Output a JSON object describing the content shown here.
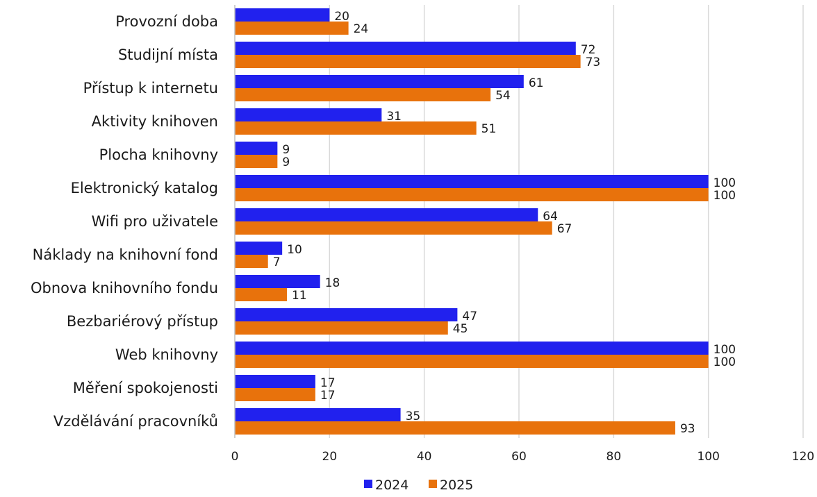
{
  "chart_data": {
    "type": "bar",
    "orientation": "horizontal",
    "categories": [
      "Provozní doba",
      "Studijní místa",
      "Přístup k internetu",
      "Aktivity knihoven",
      "Plocha knihovny",
      "Elektronický katalog",
      "Wifi pro uživatele",
      "Náklady na knihovní fond",
      "Obnova knihovního fondu",
      "Bezbariérový přístup",
      "Web knihovny",
      "Měření spokojenosti",
      "Vzdělávání pracovníků"
    ],
    "series": [
      {
        "name": "2024",
        "color": "#2121ee",
        "values": [
          20,
          72,
          61,
          31,
          9,
          100,
          64,
          10,
          18,
          47,
          100,
          17,
          35
        ]
      },
      {
        "name": "2025",
        "color": "#e8720c",
        "values": [
          24,
          73,
          54,
          51,
          9,
          100,
          67,
          7,
          11,
          45,
          100,
          17,
          93
        ]
      }
    ],
    "xlim": [
      0,
      120
    ],
    "xticks": [
      "0",
      "20",
      "40",
      "60",
      "80",
      "100",
      "120"
    ],
    "grid": "vertical",
    "legend": "bottom-center",
    "data_labels": true
  }
}
